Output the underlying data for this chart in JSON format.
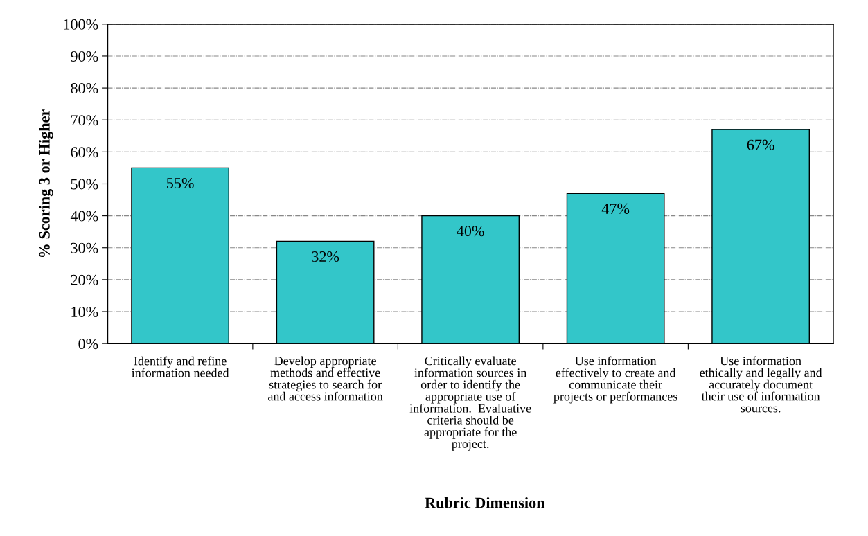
{
  "chart_data": {
    "type": "bar",
    "xlabel": "Rubric Dimension",
    "ylabel": "% Scoring 3 or Higher",
    "categories": [
      "Identify and refine\ninformation needed",
      "Develop appropriate\nmethods and effective\nstrategies to search for\nand access information",
      "Critically evaluate\ninformation sources in\norder to identify the\nappropriate use of\ninformation.  Evaluative\ncriteria should be\nappropriate for the\nproject.",
      "Use information\neffectively to create and\ncommunicate their\nprojects or performances",
      "Use information\nethically and legally and\naccurately document\ntheir use of information\nsources."
    ],
    "values": [
      55,
      32,
      40,
      47,
      67
    ],
    "value_labels": [
      "55%",
      "32%",
      "40%",
      "47%",
      "67%"
    ],
    "color": "#33c6c9",
    "ylim": [
      0,
      100
    ],
    "yticks": [
      {
        "value": 0,
        "label": "0%"
      },
      {
        "value": 10,
        "label": "10%"
      },
      {
        "value": 20,
        "label": "20%"
      },
      {
        "value": 30,
        "label": "30%"
      },
      {
        "value": 40,
        "label": "40%"
      },
      {
        "value": 50,
        "label": "50%"
      },
      {
        "value": 60,
        "label": "60%"
      },
      {
        "value": 70,
        "label": "70%"
      },
      {
        "value": 80,
        "label": "80%"
      },
      {
        "value": 90,
        "label": "90%"
      },
      {
        "value": 100,
        "label": "100%"
      }
    ],
    "grid": "y",
    "legend": false
  }
}
